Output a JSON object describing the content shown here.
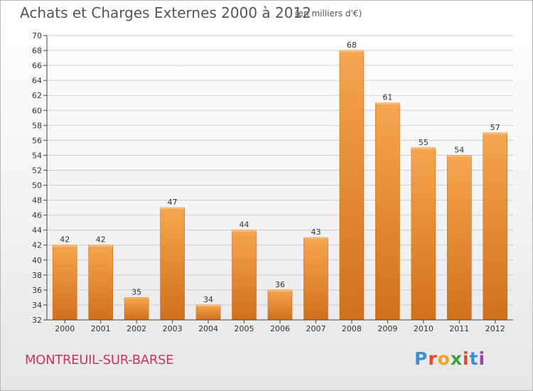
{
  "header": {
    "title": "Achats et Charges Externes 2000 à 2012",
    "unit": "(en milliers d'€)"
  },
  "footer": {
    "commune": "MONTREUIL-SUR-BARSE",
    "brand_letters": [
      "P",
      "r",
      "o",
      "x",
      "i",
      "t",
      "i"
    ],
    "brand_colors": [
      "#3a8fd6",
      "#e8452c",
      "#f2a21b",
      "#3aa14a",
      "#e8452c",
      "#3a8fd6",
      "#9b3fb5"
    ]
  },
  "colors": {
    "bar_top": "#f6a550",
    "bar_bottom": "#d1701c",
    "grid": "#d0d0d0",
    "axis": "#444444"
  },
  "chart_data": {
    "type": "bar",
    "categories": [
      "2000",
      "2001",
      "2002",
      "2003",
      "2004",
      "2005",
      "2006",
      "2007",
      "2008",
      "2009",
      "2010",
      "2011",
      "2012"
    ],
    "values": [
      42,
      42,
      35,
      47,
      34,
      44,
      36,
      43,
      68,
      61,
      55,
      54,
      57
    ],
    "title": "Achats et Charges Externes 2000 à 2012",
    "ylabel": "(en milliers d'€)",
    "ylim": [
      32,
      70
    ],
    "ytick_step": 2,
    "grid": true,
    "legend": "none"
  }
}
